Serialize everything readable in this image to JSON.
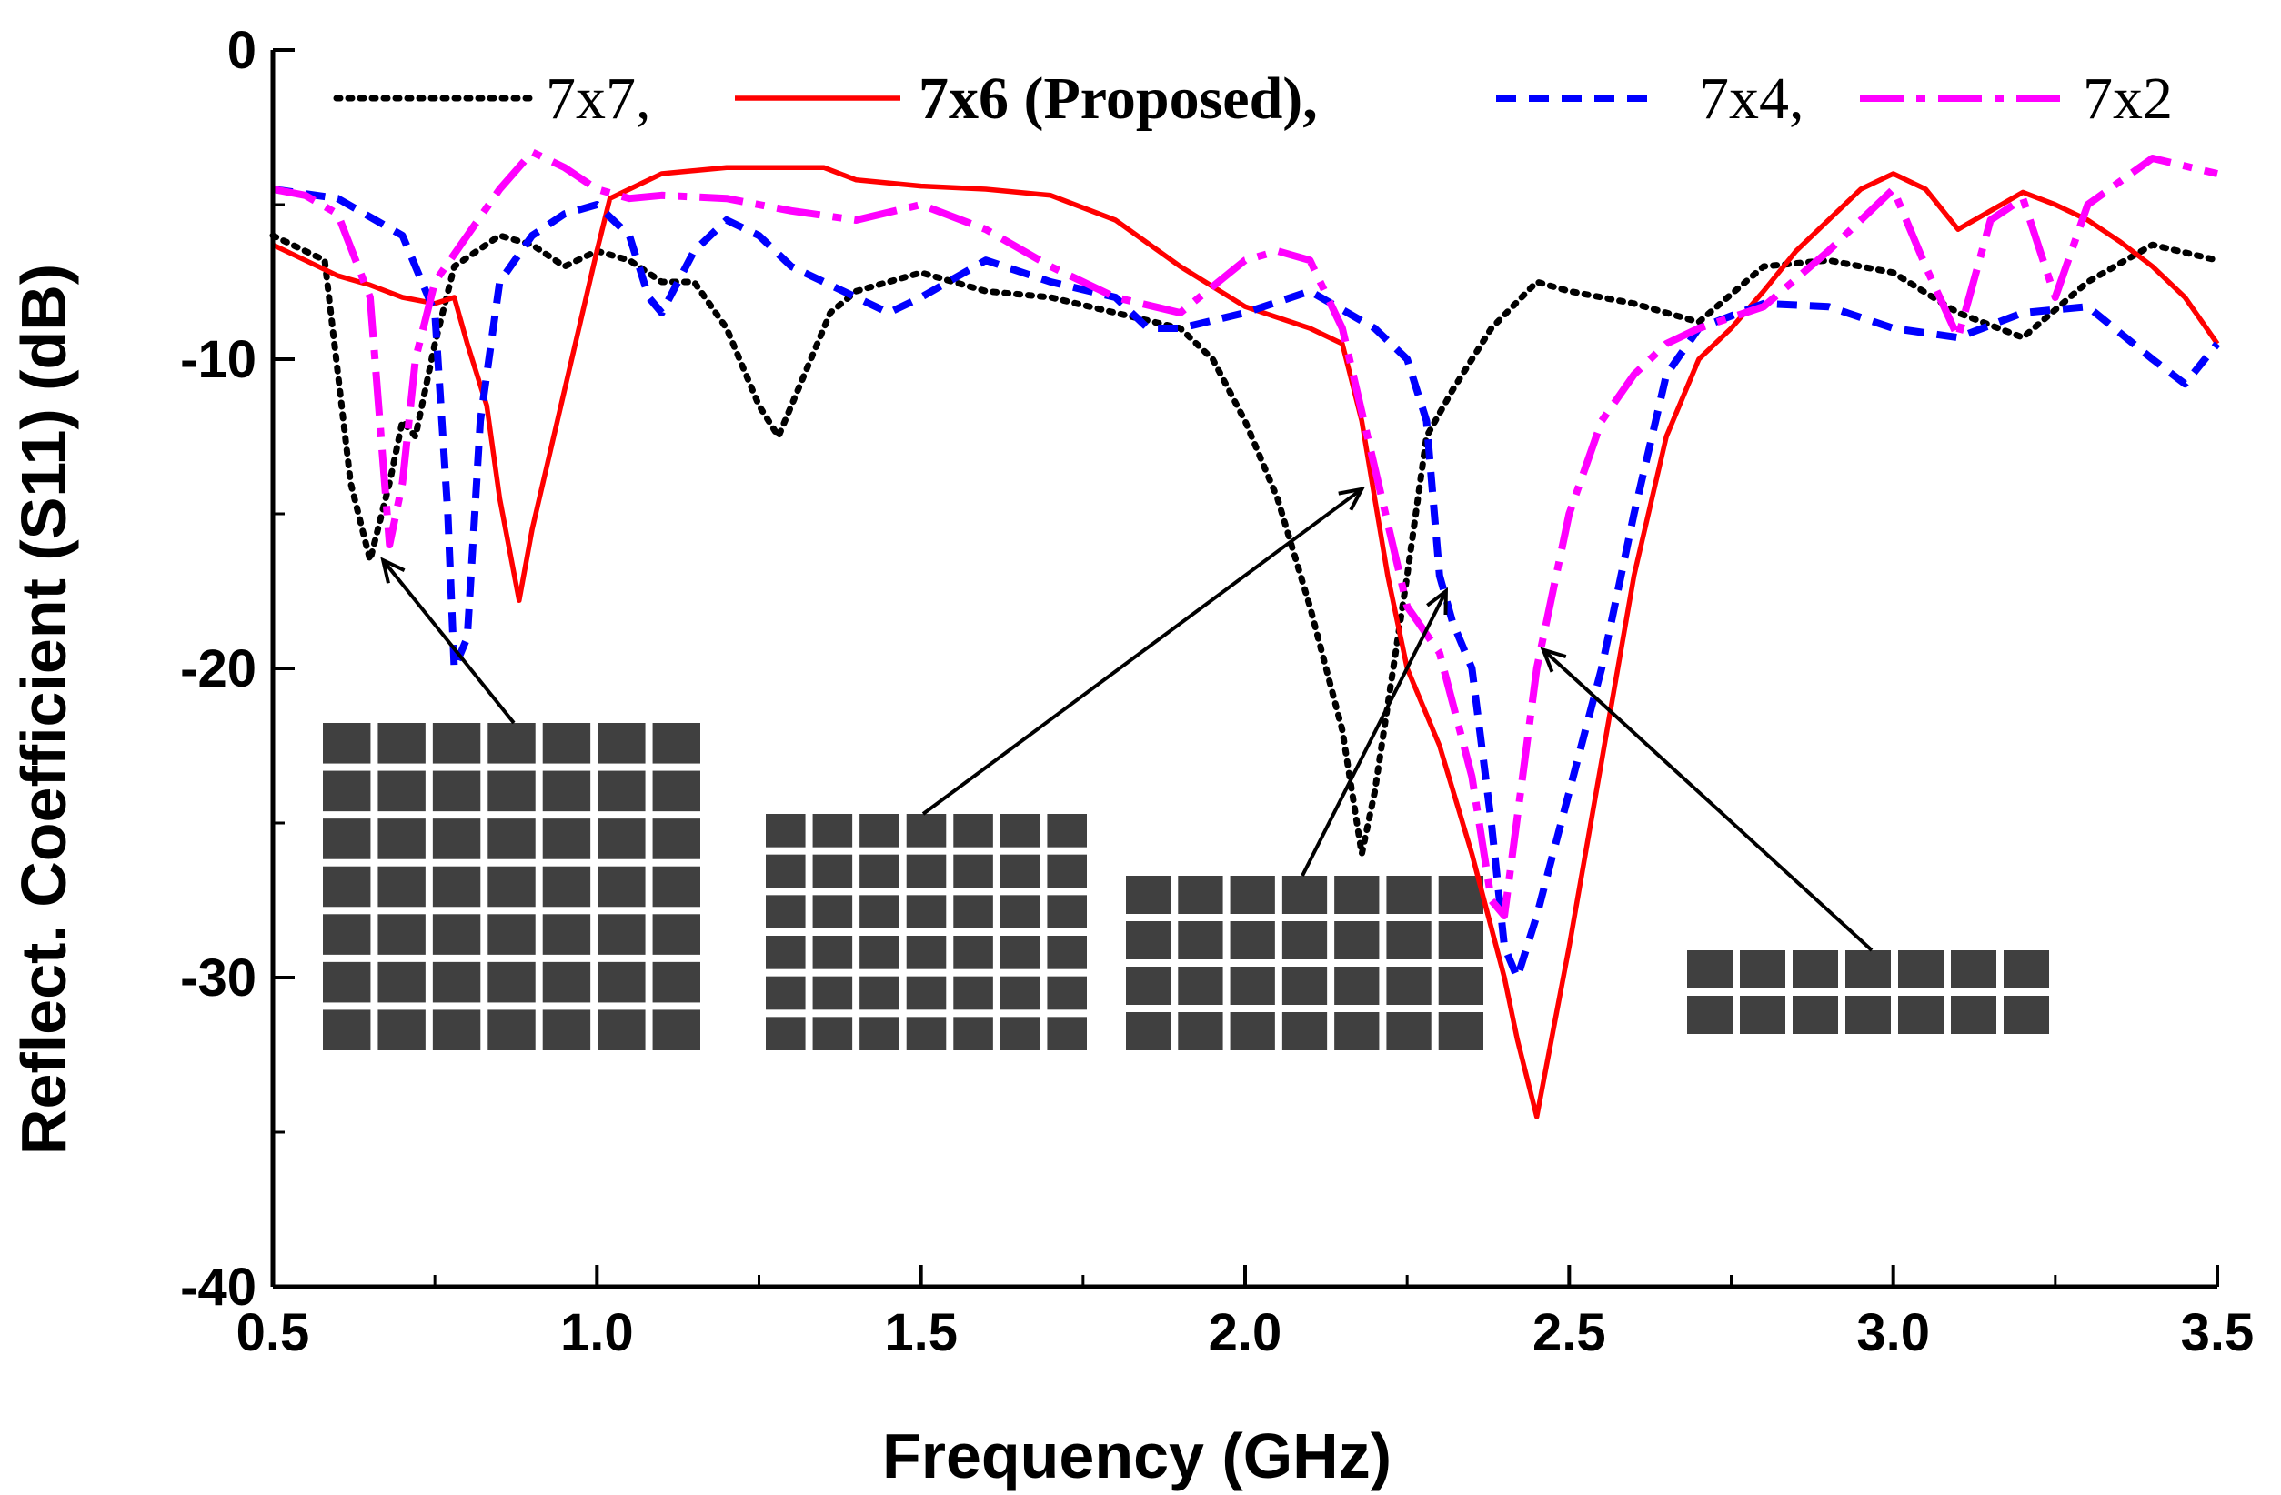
{
  "chart_data": {
    "type": "line",
    "title": "",
    "xlabel": "Frequency (GHz)",
    "ylabel": "Reflect. Coefficient (S11) (dB)",
    "xlim": [
      0.5,
      3.5
    ],
    "ylim": [
      -40,
      0
    ],
    "xticks": [
      "0.5",
      "1.0",
      "1.5",
      "2.0",
      "2.5",
      "3.0",
      "3.5"
    ],
    "xtick_values": [
      0.5,
      1.0,
      1.5,
      2.0,
      2.5,
      3.0,
      3.5
    ],
    "yticks": [
      "0",
      "-10",
      "-20",
      "-30",
      "-40"
    ],
    "ytick_values": [
      0,
      -10,
      -20,
      -30,
      -40
    ],
    "legend_position": "top",
    "series": [
      {
        "name": "7x7,",
        "color": "#000000",
        "style": "dotted",
        "bold": false,
        "x": [
          0.5,
          0.58,
          0.62,
          0.65,
          0.68,
          0.7,
          0.72,
          0.75,
          0.78,
          0.85,
          0.9,
          0.95,
          1.0,
          1.05,
          1.1,
          1.15,
          1.2,
          1.25,
          1.28,
          1.32,
          1.36,
          1.4,
          1.5,
          1.6,
          1.7,
          1.8,
          1.9,
          1.95,
          2.0,
          2.05,
          2.1,
          2.15,
          2.18,
          2.2,
          2.25,
          2.28,
          2.32,
          2.38,
          2.45,
          2.5,
          2.6,
          2.7,
          2.8,
          2.9,
          3.0,
          3.1,
          3.2,
          3.3,
          3.4,
          3.5
        ],
        "y": [
          -6.0,
          -6.8,
          -14.0,
          -16.5,
          -14.0,
          -12.0,
          -12.5,
          -9.5,
          -7.0,
          -6.0,
          -6.3,
          -7.0,
          -6.5,
          -6.8,
          -7.5,
          -7.5,
          -9.0,
          -11.5,
          -12.5,
          -10.5,
          -8.5,
          -7.8,
          -7.2,
          -7.8,
          -8.0,
          -8.5,
          -9.0,
          -10.0,
          -12.0,
          -14.5,
          -18.0,
          -22.0,
          -26.0,
          -24.0,
          -17.0,
          -12.5,
          -11.0,
          -9.0,
          -7.5,
          -7.8,
          -8.2,
          -8.8,
          -7.0,
          -6.8,
          -7.2,
          -8.5,
          -9.3,
          -7.5,
          -6.3,
          -6.8
        ]
      },
      {
        "name": "7x6 (Proposed),",
        "color": "#ff0000",
        "style": "solid",
        "bold": true,
        "x": [
          0.5,
          0.55,
          0.6,
          0.65,
          0.7,
          0.75,
          0.78,
          0.8,
          0.83,
          0.85,
          0.88,
          0.9,
          0.95,
          1.0,
          1.02,
          1.05,
          1.1,
          1.2,
          1.3,
          1.35,
          1.4,
          1.5,
          1.6,
          1.7,
          1.8,
          1.9,
          2.0,
          2.1,
          2.15,
          2.18,
          2.22,
          2.25,
          2.3,
          2.35,
          2.4,
          2.42,
          2.45,
          2.5,
          2.55,
          2.6,
          2.65,
          2.7,
          2.75,
          2.8,
          2.85,
          2.9,
          2.95,
          3.0,
          3.05,
          3.1,
          3.15,
          3.2,
          3.25,
          3.3,
          3.35,
          3.4,
          3.45,
          3.5
        ],
        "y": [
          -6.3,
          -6.8,
          -7.3,
          -7.6,
          -8.0,
          -8.2,
          -8.0,
          -9.5,
          -11.5,
          -14.5,
          -17.8,
          -15.5,
          -11.0,
          -6.5,
          -4.8,
          -4.5,
          -4.0,
          -3.8,
          -3.8,
          -3.8,
          -4.2,
          -4.4,
          -4.5,
          -4.7,
          -5.5,
          -7.0,
          -8.3,
          -9.0,
          -9.5,
          -12.0,
          -17.0,
          -20.0,
          -22.5,
          -26.0,
          -30.0,
          -32.0,
          -34.5,
          -29.0,
          -23.0,
          -17.0,
          -12.5,
          -10.0,
          -9.0,
          -7.8,
          -6.5,
          -5.5,
          -4.5,
          -4.0,
          -4.5,
          -5.8,
          -5.2,
          -4.6,
          -5.0,
          -5.5,
          -6.2,
          -7.0,
          -8.0,
          -9.5
        ]
      },
      {
        "name": "7x4,",
        "color": "#0000ff",
        "style": "dashed",
        "bold": false,
        "x": [
          0.5,
          0.6,
          0.7,
          0.75,
          0.77,
          0.78,
          0.8,
          0.82,
          0.85,
          0.9,
          0.95,
          1.0,
          1.05,
          1.08,
          1.1,
          1.15,
          1.2,
          1.25,
          1.3,
          1.4,
          1.45,
          1.5,
          1.6,
          1.7,
          1.8,
          1.85,
          1.9,
          2.0,
          2.1,
          2.2,
          2.25,
          2.28,
          2.3,
          2.32,
          2.35,
          2.38,
          2.4,
          2.42,
          2.45,
          2.5,
          2.55,
          2.6,
          2.65,
          2.7,
          2.8,
          2.9,
          3.0,
          3.1,
          3.2,
          3.3,
          3.4,
          3.45,
          3.5
        ],
        "y": [
          -4.5,
          -4.8,
          -6.0,
          -8.5,
          -15.0,
          -20.0,
          -19.0,
          -12.0,
          -7.5,
          -6.0,
          -5.3,
          -5.0,
          -6.0,
          -8.0,
          -8.5,
          -6.5,
          -5.5,
          -6.0,
          -7.0,
          -8.0,
          -8.5,
          -8.0,
          -6.8,
          -7.5,
          -8.0,
          -9.0,
          -9.0,
          -8.5,
          -7.8,
          -9.0,
          -10.0,
          -12.0,
          -17.0,
          -18.5,
          -20.0,
          -25.0,
          -29.0,
          -30.0,
          -28.0,
          -24.0,
          -20.0,
          -15.0,
          -10.5,
          -9.0,
          -8.2,
          -8.3,
          -9.0,
          -9.3,
          -8.5,
          -8.3,
          -10.0,
          -10.8,
          -9.5
        ]
      },
      {
        "name": "7x2",
        "color": "#ff00ff",
        "style": "dashdot",
        "bold": false,
        "x": [
          0.5,
          0.55,
          0.6,
          0.65,
          0.68,
          0.7,
          0.72,
          0.75,
          0.8,
          0.85,
          0.9,
          0.95,
          1.0,
          1.05,
          1.1,
          1.2,
          1.3,
          1.4,
          1.5,
          1.6,
          1.7,
          1.8,
          1.9,
          2.0,
          2.05,
          2.1,
          2.15,
          2.2,
          2.25,
          2.3,
          2.35,
          2.38,
          2.4,
          2.45,
          2.5,
          2.55,
          2.6,
          2.65,
          2.7,
          2.8,
          2.9,
          3.0,
          3.05,
          3.1,
          3.15,
          3.2,
          3.25,
          3.3,
          3.4,
          3.5
        ],
        "y": [
          -4.5,
          -4.7,
          -5.3,
          -8.0,
          -16.0,
          -14.0,
          -10.0,
          -7.5,
          -6.0,
          -4.5,
          -3.3,
          -3.8,
          -4.5,
          -4.8,
          -4.7,
          -4.8,
          -5.2,
          -5.5,
          -5.0,
          -5.8,
          -7.0,
          -8.0,
          -8.5,
          -6.8,
          -6.5,
          -6.8,
          -9.0,
          -13.5,
          -18.0,
          -19.5,
          -23.5,
          -27.5,
          -28.0,
          -20.0,
          -15.0,
          -12.0,
          -10.5,
          -9.5,
          -9.0,
          -8.3,
          -6.5,
          -4.5,
          -7.0,
          -9.3,
          -5.5,
          -4.8,
          -8.0,
          -5.0,
          -3.5,
          -4.0
        ]
      }
    ],
    "annotations": [
      {
        "name": "7x7 grid",
        "rows": 7,
        "cols": 7,
        "target_x": 0.67,
        "target_y": -16.5
      },
      {
        "name": "7x6 grid",
        "rows": 6,
        "cols": 7,
        "target_x": 2.18,
        "target_y": -14.2
      },
      {
        "name": "7x4 grid",
        "rows": 4,
        "cols": 7,
        "target_x": 2.31,
        "target_y": -17.5
      },
      {
        "name": "7x2 grid",
        "rows": 2,
        "cols": 7,
        "target_x": 2.46,
        "target_y": -19.4
      }
    ]
  }
}
